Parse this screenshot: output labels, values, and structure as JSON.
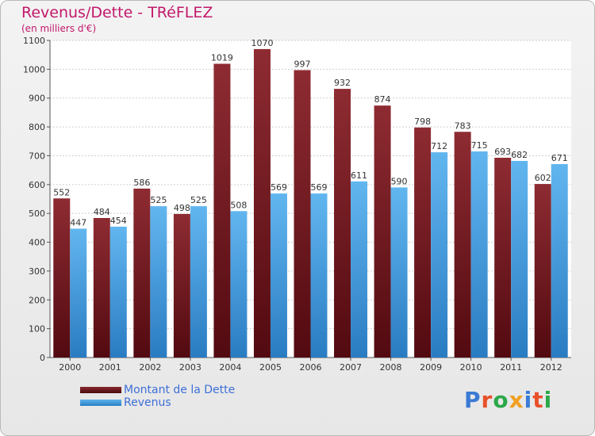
{
  "chart_data": {
    "type": "bar",
    "title": "Revenus/Dette - TRéFLEZ",
    "subtitle": "(en milliers d'€)",
    "categories": [
      "2000",
      "2001",
      "2002",
      "2003",
      "2004",
      "2005",
      "2006",
      "2007",
      "2008",
      "2009",
      "2010",
      "2011",
      "2012"
    ],
    "series": [
      {
        "name": "Montant de la Dette",
        "values": [
          552,
          484,
          586,
          498,
          1019,
          1070,
          997,
          932,
          874,
          798,
          783,
          693,
          602
        ],
        "color": "#7a1f25"
      },
      {
        "name": "Revenus",
        "values": [
          447,
          454,
          525,
          525,
          508,
          569,
          569,
          611,
          590,
          712,
          715,
          682,
          671
        ],
        "color": "#4ea3e4"
      }
    ],
    "ylim": [
      0,
      1100
    ],
    "yticks": [
      0,
      100,
      200,
      300,
      400,
      500,
      600,
      700,
      800,
      900,
      1000,
      1100
    ],
    "grid": true,
    "legend": "bottom-left"
  },
  "logo": {
    "text": "Proxiti",
    "letter_colors": [
      "#3a7bd5",
      "#e8502a",
      "#2ba84a",
      "#f0a020",
      "#3a7bd5",
      "#e8502a",
      "#2ba84a"
    ]
  }
}
